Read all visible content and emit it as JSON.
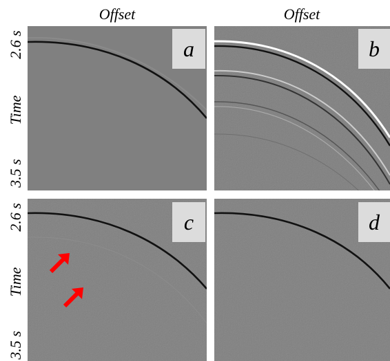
{
  "columns": [
    {
      "label": "Offset"
    },
    {
      "label": "Offset"
    }
  ],
  "rows": [
    {
      "top": "2.6 s",
      "middle": "Time",
      "bottom": "3.5 s"
    },
    {
      "top": "2.6 s",
      "middle": "Time",
      "bottom": "3.5 s"
    }
  ],
  "panels": [
    {
      "label": "a"
    },
    {
      "label": "b"
    },
    {
      "label": "c"
    },
    {
      "label": "d"
    }
  ]
}
